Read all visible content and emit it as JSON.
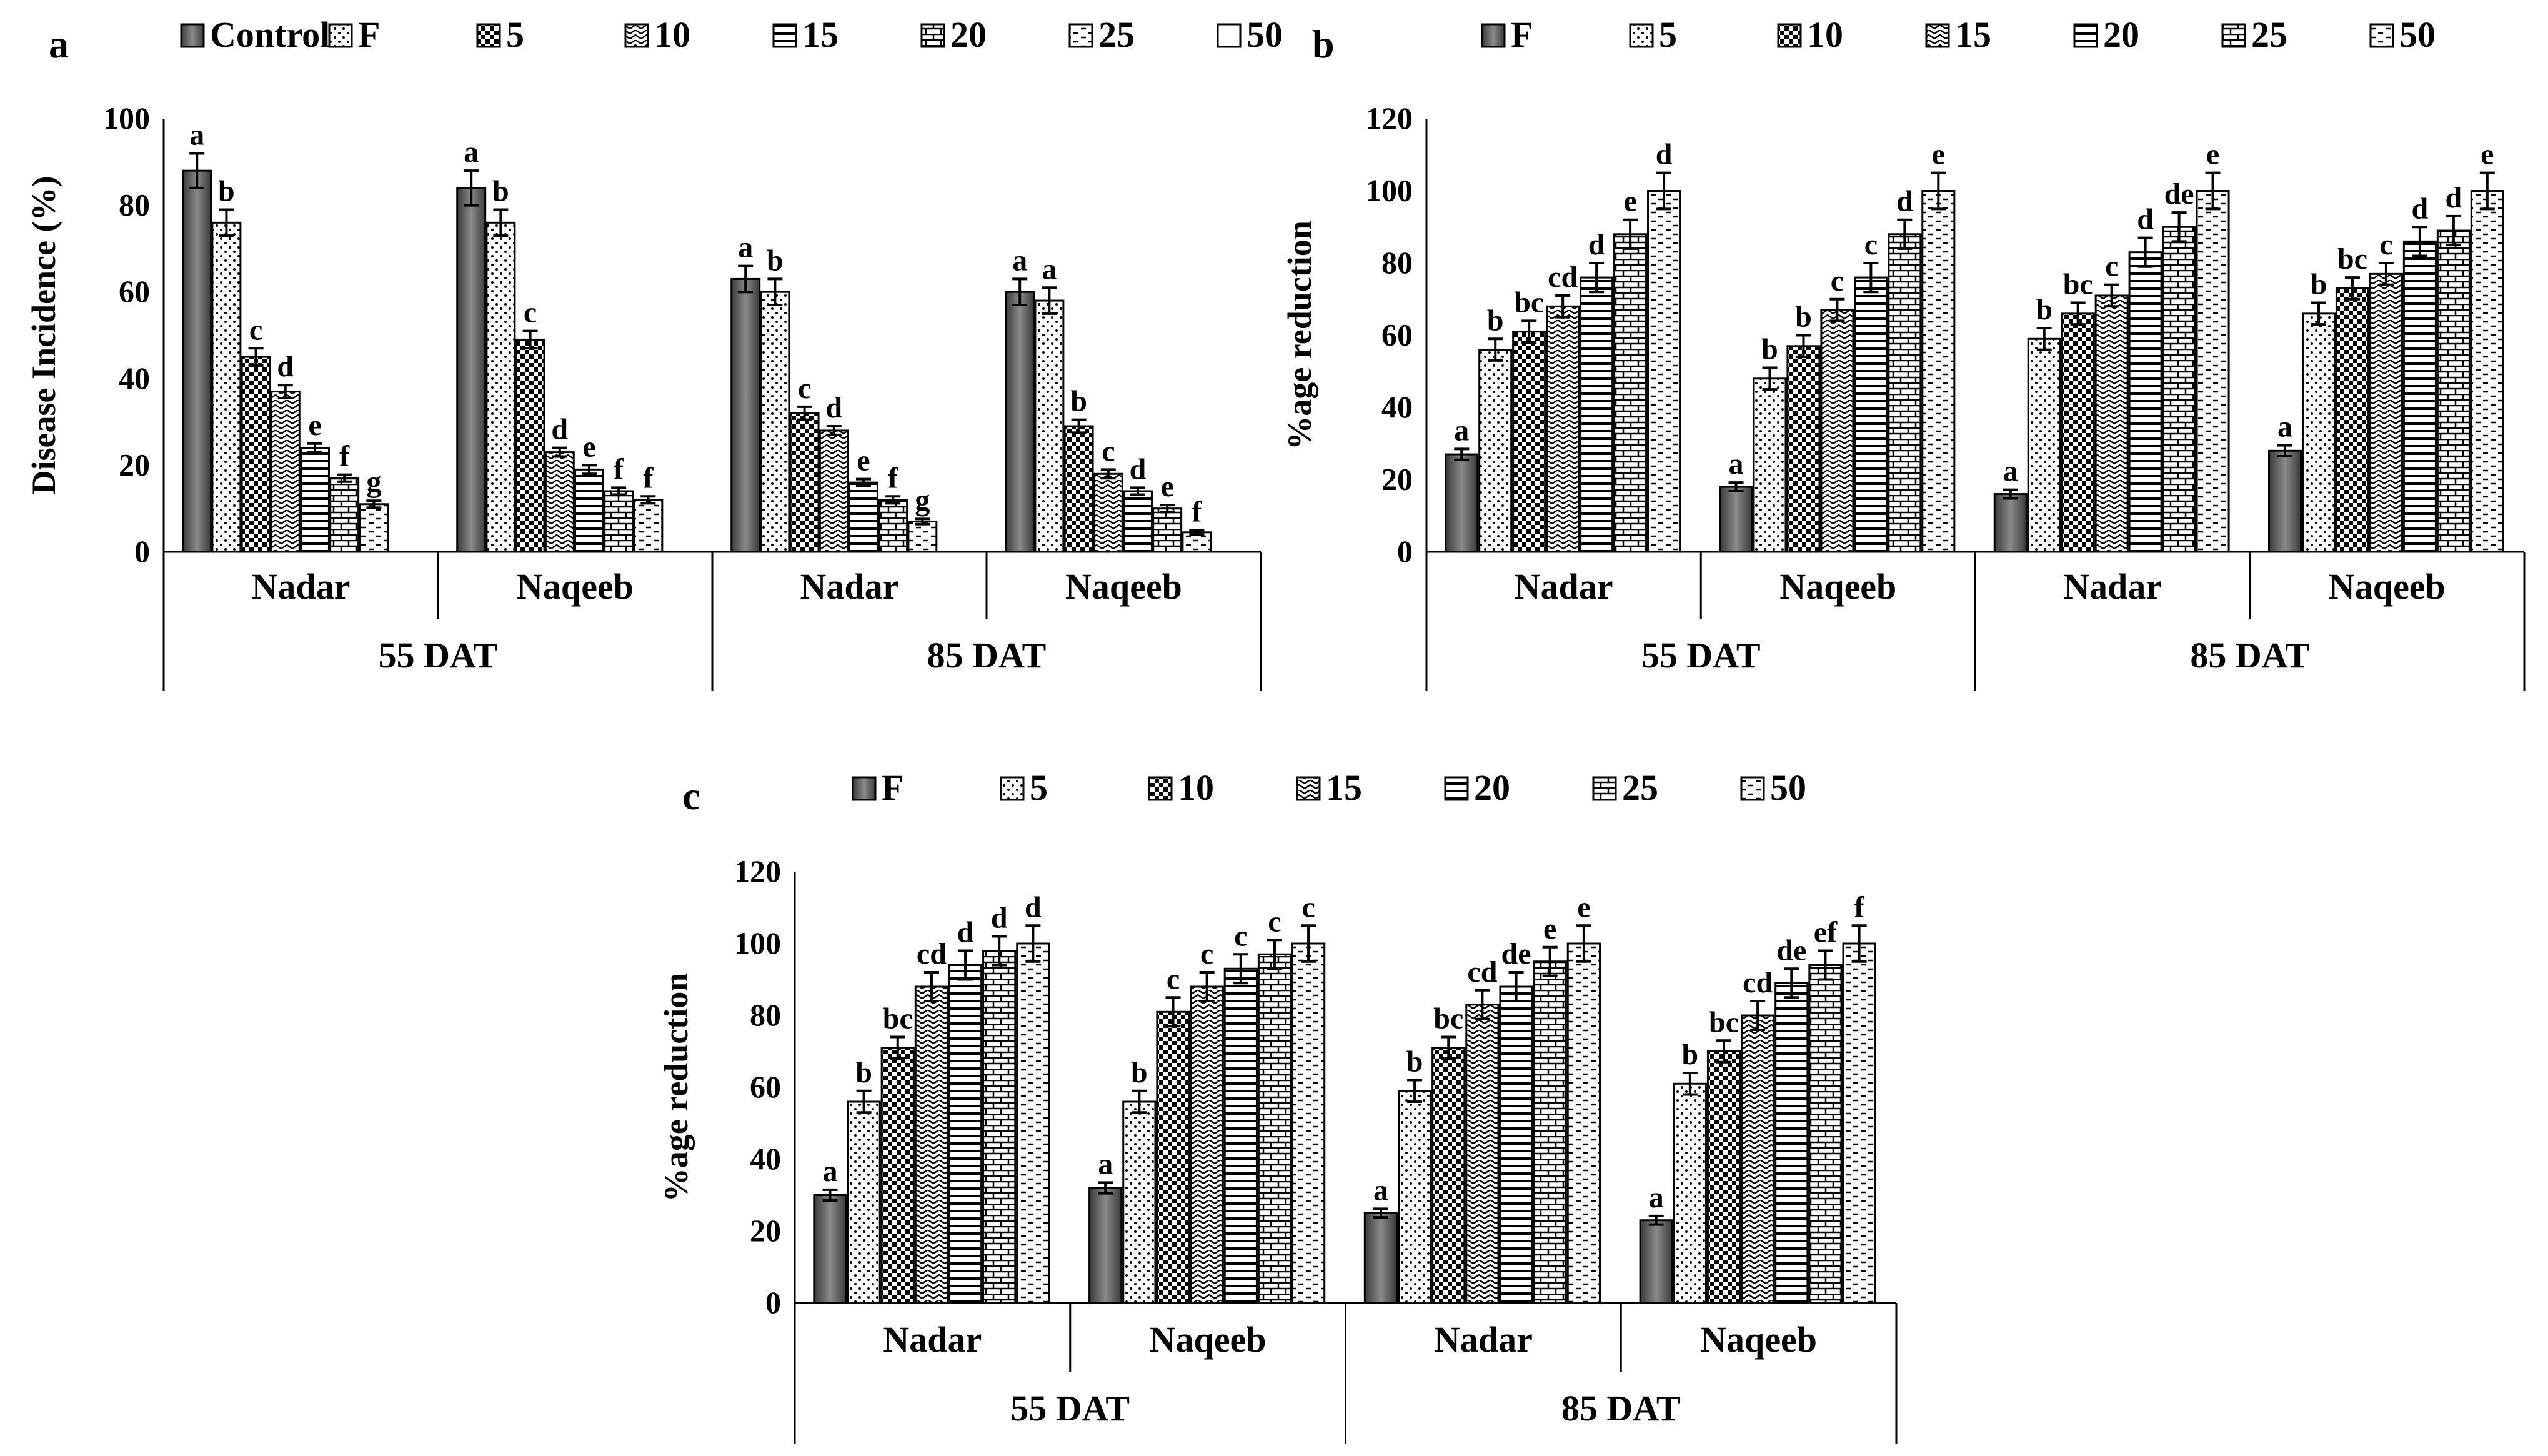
{
  "chart_data": [
    {
      "panel_label": "a",
      "type": "bar",
      "ylabel": "Disease Incidence (%)",
      "ylim": [
        0,
        100
      ],
      "yticks": [
        0,
        20,
        40,
        60,
        80,
        100
      ],
      "categories": [
        "Nadar",
        "Naqeeb",
        "Nadar",
        "Naqeeb"
      ],
      "groups": [
        {
          "label": "55 DAT",
          "span": 2
        },
        {
          "label": "85 DAT",
          "span": 2
        }
      ],
      "legend": [
        "Control",
        "F",
        "5",
        "10",
        "15",
        "20",
        "25",
        "50"
      ],
      "series": [
        {
          "name": "Control",
          "values": [
            88,
            84,
            63,
            60
          ],
          "errors": [
            4,
            4,
            3,
            3
          ],
          "letters": [
            "a",
            "a",
            "a",
            "a"
          ]
        },
        {
          "name": "F",
          "values": [
            76,
            76,
            60,
            58
          ],
          "errors": [
            3,
            3,
            3,
            3
          ],
          "letters": [
            "b",
            "b",
            "b",
            "a"
          ]
        },
        {
          "name": "5",
          "values": [
            45,
            49,
            32,
            29
          ],
          "errors": [
            2,
            2,
            1.5,
            1.5
          ],
          "letters": [
            "c",
            "c",
            "c",
            "b"
          ]
        },
        {
          "name": "10",
          "values": [
            37,
            23,
            28,
            18
          ],
          "errors": [
            1.5,
            1,
            1,
            1
          ],
          "letters": [
            "d",
            "d",
            "d",
            "c"
          ]
        },
        {
          "name": "15",
          "values": [
            24,
            19,
            16,
            14
          ],
          "errors": [
            1,
            1,
            0.8,
            0.8
          ],
          "letters": [
            "e",
            "e",
            "e",
            "d"
          ]
        },
        {
          "name": "20",
          "values": [
            17,
            14,
            12,
            10
          ],
          "errors": [
            0.8,
            0.8,
            0.8,
            0.8
          ],
          "letters": [
            "f",
            "f",
            "f",
            "e"
          ]
        },
        {
          "name": "25",
          "values": [
            11,
            12,
            7,
            4.5
          ],
          "errors": [
            0.8,
            0.8,
            0.6,
            0.5
          ],
          "letters": [
            "g",
            "f",
            "g",
            "f"
          ]
        },
        {
          "name": "50",
          "values": [
            0,
            0,
            0,
            0
          ],
          "errors": [
            0,
            0,
            0,
            0
          ],
          "letters": [
            "",
            "",
            "",
            ""
          ]
        }
      ]
    },
    {
      "panel_label": "b",
      "type": "bar",
      "ylabel": "%age reduction",
      "ylim": [
        0,
        120
      ],
      "yticks": [
        0,
        20,
        40,
        60,
        80,
        100,
        120
      ],
      "categories": [
        "Nadar",
        "Naqeeb",
        "Nadar",
        "Naqeeb"
      ],
      "groups": [
        {
          "label": "55 DAT",
          "span": 2
        },
        {
          "label": "85 DAT",
          "span": 2
        }
      ],
      "legend": [
        "F",
        "5",
        "10",
        "15",
        "20",
        "25",
        "50"
      ],
      "series": [
        {
          "name": "F",
          "values": [
            27,
            18,
            16,
            28
          ],
          "errors": [
            1.5,
            1.2,
            1.2,
            1.5
          ],
          "letters": [
            "a",
            "a",
            "a",
            "a"
          ]
        },
        {
          "name": "5",
          "values": [
            56,
            48,
            59,
            66
          ],
          "errors": [
            3,
            3,
            3,
            3
          ],
          "letters": [
            "b",
            "b",
            "b",
            "b"
          ]
        },
        {
          "name": "10",
          "values": [
            61,
            57,
            66,
            73
          ],
          "errors": [
            3,
            3,
            3,
            3
          ],
          "letters": [
            "bc",
            "b",
            "bc",
            "bc"
          ]
        },
        {
          "name": "15",
          "values": [
            68,
            67,
            71,
            77
          ],
          "errors": [
            3,
            3,
            3,
            3
          ],
          "letters": [
            "cd",
            "c",
            "c",
            "c"
          ]
        },
        {
          "name": "20",
          "values": [
            76,
            76,
            83,
            86
          ],
          "errors": [
            4,
            4,
            4,
            4
          ],
          "letters": [
            "d",
            "c",
            "d",
            "d"
          ]
        },
        {
          "name": "25",
          "values": [
            88,
            88,
            90,
            89
          ],
          "errors": [
            4,
            4,
            4,
            4
          ],
          "letters": [
            "e",
            "d",
            "de",
            "d"
          ]
        },
        {
          "name": "50",
          "values": [
            100,
            100,
            100,
            100
          ],
          "errors": [
            5,
            5,
            5,
            5
          ],
          "letters": [
            "d",
            "e",
            "e",
            "e"
          ]
        }
      ]
    },
    {
      "panel_label": "c",
      "type": "bar",
      "ylabel": "%age reduction",
      "ylim": [
        0,
        120
      ],
      "yticks": [
        0,
        20,
        40,
        60,
        80,
        100,
        120
      ],
      "categories": [
        "Nadar",
        "Naqeeb",
        "Nadar",
        "Naqeeb"
      ],
      "groups": [
        {
          "label": "55 DAT",
          "span": 2
        },
        {
          "label": "85 DAT",
          "span": 2
        }
      ],
      "legend": [
        "F",
        "5",
        "10",
        "15",
        "20",
        "25",
        "50"
      ],
      "series": [
        {
          "name": "F",
          "values": [
            30,
            32,
            25,
            23
          ],
          "errors": [
            1.5,
            1.5,
            1.2,
            1.2
          ],
          "letters": [
            "a",
            "a",
            "a",
            "a"
          ]
        },
        {
          "name": "5",
          "values": [
            56,
            56,
            59,
            61
          ],
          "errors": [
            3,
            3,
            3,
            3
          ],
          "letters": [
            "b",
            "b",
            "b",
            "b"
          ]
        },
        {
          "name": "10",
          "values": [
            71,
            81,
            71,
            70
          ],
          "errors": [
            3,
            4,
            3,
            3
          ],
          "letters": [
            "bc",
            "c",
            "bc",
            "bc"
          ]
        },
        {
          "name": "15",
          "values": [
            88,
            88,
            83,
            80
          ],
          "errors": [
            4,
            4,
            4,
            4
          ],
          "letters": [
            "cd",
            "c",
            "cd",
            "cd"
          ]
        },
        {
          "name": "20",
          "values": [
            94,
            93,
            88,
            89
          ],
          "errors": [
            4,
            4,
            4,
            4
          ],
          "letters": [
            "d",
            "c",
            "de",
            "de"
          ]
        },
        {
          "name": "25",
          "values": [
            98,
            97,
            95,
            94
          ],
          "errors": [
            4,
            4,
            4,
            4
          ],
          "letters": [
            "d",
            "c",
            "e",
            "ef"
          ]
        },
        {
          "name": "50",
          "values": [
            100,
            100,
            100,
            100
          ],
          "errors": [
            5,
            5,
            5,
            5
          ],
          "letters": [
            "d",
            "c",
            "e",
            "f"
          ]
        }
      ]
    }
  ]
}
